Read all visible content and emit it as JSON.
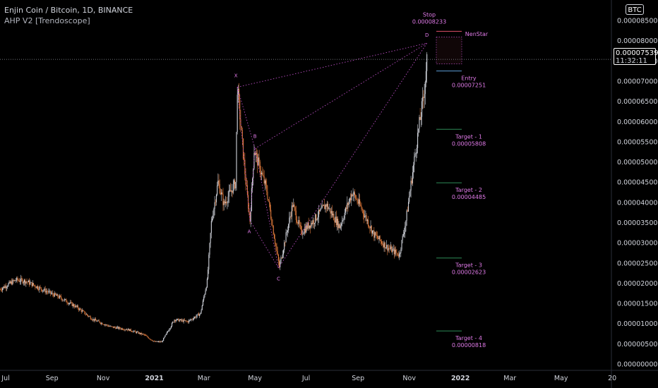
{
  "header": {
    "title": "Enjin Coin / Bitcoin, 1D, BINANCE",
    "indicator": "AHP V2 [Trendoscope]"
  },
  "price_axis": {
    "currency": "BTC",
    "current_price": "0.00007539",
    "countdown": "11:32:11"
  },
  "colors": {
    "background": "#000000",
    "candle_up": "#d1d4dc",
    "candle_down": "#e07a3c",
    "pattern": "#b94dc2",
    "label": "#e07ae8",
    "entry_line": "#5b9bd5",
    "target_line": "#2e8b57",
    "stop_line": "#e0506a"
  },
  "chart_data": {
    "type": "candlestick",
    "title": "Enjin Coin / Bitcoin, 1D, BINANCE",
    "ylim": [
      0.0,
      8.85e-05
    ],
    "xlim": [
      "2020-07-01",
      "2022-06-30"
    ],
    "y_ticks": [
      "0.00008500",
      "0.00008000",
      "0.00007500",
      "0.00007000",
      "0.00006500",
      "0.00006000",
      "0.00005500",
      "0.00005000",
      "0.00004500",
      "0.00004000",
      "0.00003500",
      "0.00003000",
      "0.00002500",
      "0.00002000",
      "0.00001500",
      "0.00001000",
      "0.00000500",
      "0.00000000"
    ],
    "y_tick_values": [
      8.5e-05,
      8e-05,
      7.5e-05,
      7e-05,
      6.5e-05,
      6e-05,
      5.5e-05,
      5e-05,
      4.5e-05,
      4e-05,
      3.5e-05,
      3e-05,
      2.5e-05,
      2e-05,
      1.5e-05,
      1e-05,
      5e-06,
      0.0
    ],
    "x_ticks": [
      {
        "label": "Jul",
        "date": "2020-07-01",
        "bold": false
      },
      {
        "label": "Sep",
        "date": "2020-09-01",
        "bold": false
      },
      {
        "label": "Nov",
        "date": "2020-11-01",
        "bold": false
      },
      {
        "label": "2021",
        "date": "2021-01-01",
        "bold": true
      },
      {
        "label": "Mar",
        "date": "2021-03-01",
        "bold": false
      },
      {
        "label": "May",
        "date": "2021-05-01",
        "bold": false
      },
      {
        "label": "Jul",
        "date": "2021-07-01",
        "bold": false
      },
      {
        "label": "Sep",
        "date": "2021-09-01",
        "bold": false
      },
      {
        "label": "Nov",
        "date": "2021-11-01",
        "bold": false
      },
      {
        "label": "2022",
        "date": "2022-01-01",
        "bold": true
      },
      {
        "label": "Mar",
        "date": "2022-03-01",
        "bold": false
      },
      {
        "label": "May",
        "date": "2022-05-01",
        "bold": false
      },
      {
        "label": "20",
        "date": "2022-07-01",
        "bold": false
      }
    ],
    "price_path": [
      [
        "2020-07-01",
        1.85e-05
      ],
      [
        "2020-07-20",
        2.08e-05
      ],
      [
        "2020-08-01",
        2.05e-05
      ],
      [
        "2020-08-20",
        1.85e-05
      ],
      [
        "2020-09-10",
        1.65e-05
      ],
      [
        "2020-10-01",
        1.4e-05
      ],
      [
        "2020-10-20",
        1.1e-05
      ],
      [
        "2020-11-10",
        9.2e-06
      ],
      [
        "2020-12-01",
        8.5e-06
      ],
      [
        "2020-12-20",
        7.2e-06
      ],
      [
        "2021-01-01",
        5.5e-06
      ],
      [
        "2021-01-10",
        5.5e-06
      ],
      [
        "2021-01-25",
        1.1e-05
      ],
      [
        "2021-02-10",
        1.05e-05
      ],
      [
        "2021-02-25",
        1.25e-05
      ],
      [
        "2021-03-05",
        2.05e-05
      ],
      [
        "2021-03-10",
        3.5e-05
      ],
      [
        "2021-03-18",
        4.5e-05
      ],
      [
        "2021-03-25",
        3.95e-05
      ],
      [
        "2021-04-08",
        4.5e-05
      ],
      [
        "2021-04-10",
        6.85e-05
      ],
      [
        "2021-04-20",
        4.5e-05
      ],
      [
        "2021-04-25",
        3.55e-05
      ],
      [
        "2021-04-30",
        5.3e-05
      ],
      [
        "2021-05-15",
        4.3e-05
      ],
      [
        "2021-05-30",
        2.4e-05
      ],
      [
        "2021-06-15",
        3.95e-05
      ],
      [
        "2021-06-25",
        3.25e-05
      ],
      [
        "2021-07-10",
        3.55e-05
      ],
      [
        "2021-07-25",
        3.95e-05
      ],
      [
        "2021-08-10",
        3.4e-05
      ],
      [
        "2021-08-25",
        4.25e-05
      ],
      [
        "2021-09-05",
        3.85e-05
      ],
      [
        "2021-09-20",
        3.2e-05
      ],
      [
        "2021-10-05",
        2.9e-05
      ],
      [
        "2021-10-20",
        2.7e-05
      ],
      [
        "2021-10-28",
        3.55e-05
      ],
      [
        "2021-11-05",
        4.75e-05
      ],
      [
        "2021-11-12",
        5.8e-05
      ],
      [
        "2021-11-18",
        6.6e-05
      ],
      [
        "2021-11-22",
        7.54e-05
      ]
    ],
    "pattern_points": [
      {
        "label": "X",
        "date": "2021-04-10",
        "price": 6.85e-05
      },
      {
        "label": "A",
        "date": "2021-04-25",
        "price": 3.55e-05
      },
      {
        "label": "B",
        "date": "2021-05-01",
        "price": 5.33e-05
      },
      {
        "label": "C",
        "date": "2021-05-29",
        "price": 2.38e-05
      },
      {
        "label": "D",
        "date": "2021-11-22",
        "price": 7.939e-05
      }
    ],
    "levels": [
      {
        "name": "Stop",
        "value": "0.00008233",
        "price": 8.233e-05,
        "line": "stop"
      },
      {
        "name": "Entry",
        "value": "0.00007251",
        "price": 7.251e-05,
        "line": "entry"
      },
      {
        "name": "Target - 1",
        "value": "0.00005808",
        "price": 5.808e-05,
        "line": "target"
      },
      {
        "name": "Target - 2",
        "value": "0.00004485",
        "price": 4.485e-05,
        "line": "target"
      },
      {
        "name": "Target - 3",
        "value": "0.00002623",
        "price": 2.623e-05,
        "line": "target"
      },
      {
        "name": "Target - 4",
        "value": "0.00000818",
        "price": 8.18e-06,
        "line": "target"
      }
    ],
    "annotation": "NenStar",
    "current_price": 7.539e-05
  }
}
